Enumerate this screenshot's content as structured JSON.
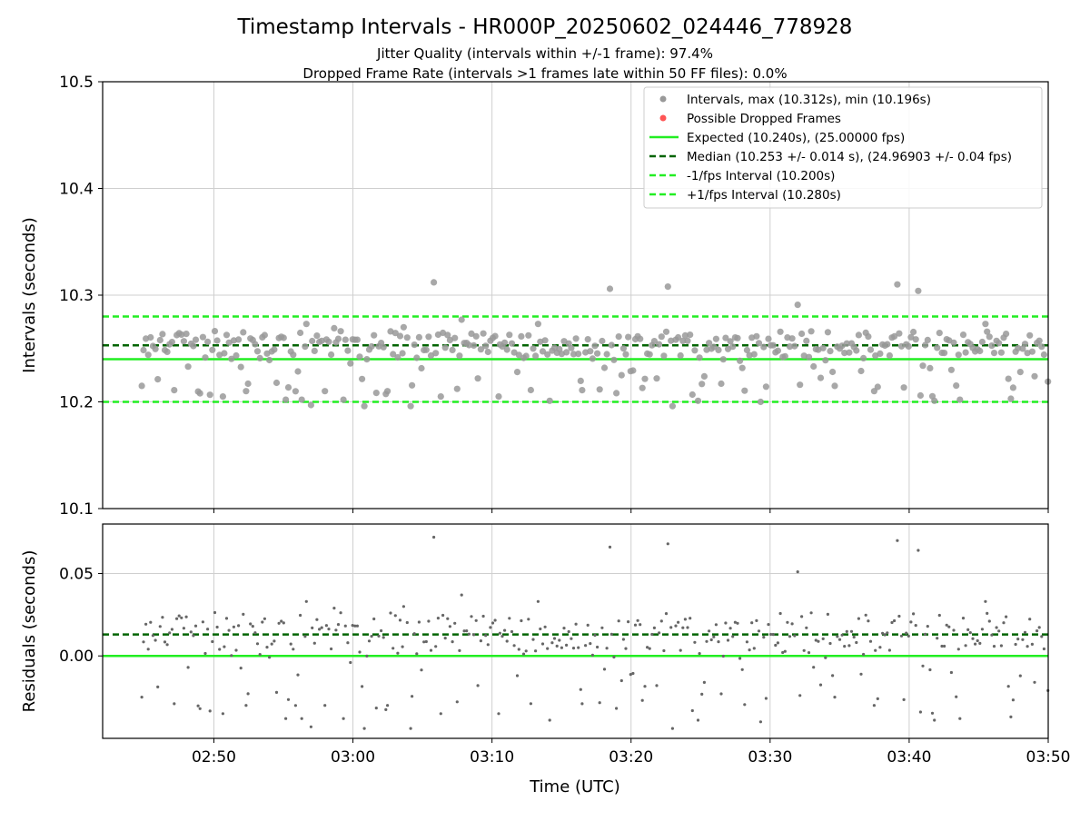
{
  "figure": {
    "title": "Timestamp Intervals - HR000P_20250602_024446_778928",
    "subtitle_1": "Jitter Quality (intervals within +/-1 frame): 97.4%",
    "subtitle_2": "Dropped Frame Rate (intervals >1 frames late within 50 FF files): 0.0%",
    "xlabel": "Time (UTC)"
  },
  "colors": {
    "points": "#999999",
    "dropped": "#ff5555",
    "expected": "#22ee22",
    "median": "#006400",
    "interval_band": "#22ee22",
    "residual_points": "#666666"
  },
  "chart_data": [
    {
      "type": "scatter",
      "ylabel": "Intervals (seconds)",
      "xlim": [
        "02:42",
        "03:50"
      ],
      "ylim": [
        10.1,
        10.5
      ],
      "x_ticks": [
        "02:50",
        "03:00",
        "03:10",
        "03:20",
        "03:30",
        "03:40",
        "03:50"
      ],
      "y_ticks": [
        "10.1",
        "10.2",
        "10.3",
        "10.4",
        "10.5"
      ],
      "grid": true,
      "legend_position": "top-right",
      "legend": [
        "Intervals, max (10.312s), min (10.196s)",
        "Possible Dropped Frames",
        "Expected (10.240s), (25.00000 fps)",
        "Median (10.253 +/- 0.014 s), (24.96903 +/- 0.04 fps)",
        "-1/fps Interval (10.200s)",
        "+1/fps Interval (10.280s)"
      ],
      "reference_lines": {
        "expected": 10.24,
        "median": 10.253,
        "minus_one_fps": 10.2,
        "plus_one_fps": 10.28
      },
      "interval_stats": {
        "max": 10.312,
        "min": 10.196,
        "count_approx": 400
      },
      "series": [
        {
          "name": "Intervals, max (10.312s), min (10.196s)",
          "x_start": "02:44:46",
          "x_end": "03:50:00",
          "step_s": 10.253
        },
        {
          "name": "Possible Dropped Frames",
          "values": []
        }
      ],
      "notable_points": [
        {
          "x": "02:44:49",
          "y": 10.215
        },
        {
          "x": "02:47:09",
          "y": 10.211
        },
        {
          "x": "02:48:09",
          "y": 10.233
        },
        {
          "x": "02:49:00",
          "y": 10.208
        },
        {
          "x": "02:50:39",
          "y": 10.205
        },
        {
          "x": "02:52:19",
          "y": 10.21
        },
        {
          "x": "02:55:10",
          "y": 10.202
        },
        {
          "x": "02:56:19",
          "y": 10.202
        },
        {
          "x": "02:56:39",
          "y": 10.273
        },
        {
          "x": "02:56:59",
          "y": 10.197
        },
        {
          "x": "02:57:59",
          "y": 10.21
        },
        {
          "x": "02:58:39",
          "y": 10.269
        },
        {
          "x": "02:59:19",
          "y": 10.202
        },
        {
          "x": "02:59:49",
          "y": 10.236
        },
        {
          "x": "03:00:49",
          "y": 10.196
        },
        {
          "x": "03:02:29",
          "y": 10.21
        },
        {
          "x": "03:03:39",
          "y": 10.27
        },
        {
          "x": "03:04:09",
          "y": 10.196
        },
        {
          "x": "03:05:49",
          "y": 10.312
        },
        {
          "x": "03:06:19",
          "y": 10.205
        },
        {
          "x": "03:07:49",
          "y": 10.277
        },
        {
          "x": "03:08:59",
          "y": 10.222
        },
        {
          "x": "03:10:29",
          "y": 10.205
        },
        {
          "x": "03:11:49",
          "y": 10.228
        },
        {
          "x": "03:13:19",
          "y": 10.273
        },
        {
          "x": "03:14:09",
          "y": 10.201
        },
        {
          "x": "03:16:29",
          "y": 10.211
        },
        {
          "x": "03:18:29",
          "y": 10.306
        },
        {
          "x": "03:19:19",
          "y": 10.225
        },
        {
          "x": "03:20:49",
          "y": 10.213
        },
        {
          "x": "03:22:39",
          "y": 10.308
        },
        {
          "x": "03:22:59",
          "y": 10.196
        },
        {
          "x": "03:24:49",
          "y": 10.201
        },
        {
          "x": "03:26:29",
          "y": 10.217
        },
        {
          "x": "03:29:19",
          "y": 10.2
        },
        {
          "x": "03:31:59",
          "y": 10.291
        },
        {
          "x": "03:32:09",
          "y": 10.216
        },
        {
          "x": "03:34:39",
          "y": 10.215
        },
        {
          "x": "03:37:29",
          "y": 10.21
        },
        {
          "x": "03:39:09",
          "y": 10.31
        },
        {
          "x": "03:40:39",
          "y": 10.304
        },
        {
          "x": "03:40:49",
          "y": 10.206
        },
        {
          "x": "03:41:49",
          "y": 10.201
        },
        {
          "x": "03:43:39",
          "y": 10.202
        },
        {
          "x": "03:45:29",
          "y": 10.273
        },
        {
          "x": "03:47:19",
          "y": 10.203
        },
        {
          "x": "03:49:59",
          "y": 10.219
        }
      ]
    },
    {
      "type": "scatter",
      "ylabel": "Residuals (seconds)",
      "xlabel": "Time (UTC)",
      "xlim": [
        "02:42",
        "03:50"
      ],
      "ylim": [
        -0.05,
        0.08
      ],
      "x_ticks": [
        "02:50",
        "03:00",
        "03:10",
        "03:20",
        "03:30",
        "03:40",
        "03:50"
      ],
      "y_ticks": [
        "0.00",
        "0.05"
      ],
      "grid": true,
      "reference_lines": {
        "zero": 0.0,
        "median_offset": 0.013
      },
      "series": [
        {
          "name": "",
          "definition": "interval minus expected (10.240 s)"
        }
      ]
    }
  ]
}
